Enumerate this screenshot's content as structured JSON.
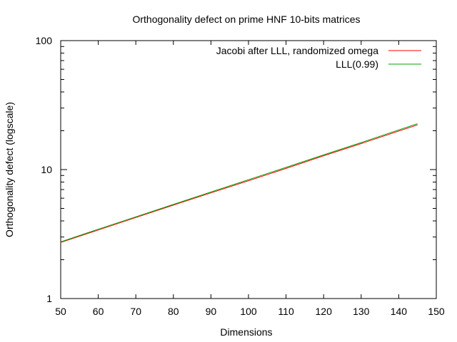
{
  "chart_data": {
    "type": "line",
    "title": "Orthogonality defect on prime HNF 10-bits matrices",
    "xlabel": "Dimensions",
    "ylabel": "Orthogonality defect (logscale)",
    "xlim": [
      50,
      150
    ],
    "ylim": [
      1,
      100
    ],
    "yscale": "log",
    "grid": false,
    "legend_position": "top-right",
    "xticks": [
      50,
      60,
      70,
      80,
      90,
      100,
      110,
      120,
      130,
      140,
      150
    ],
    "xtick_labels": [
      "50",
      "60",
      "70",
      "80",
      "90",
      "100",
      "110",
      "120",
      "130",
      "140",
      "150"
    ],
    "yticks": [
      1,
      10,
      100
    ],
    "ytick_labels": [
      "1",
      "10",
      "100"
    ],
    "y_minor_ticks": [
      2,
      3,
      4,
      5,
      6,
      7,
      8,
      9,
      20,
      30,
      40,
      50,
      60,
      70,
      80,
      90
    ],
    "series": [
      {
        "name": "Jacobi after LLL, randomized omega",
        "color": "#ff0000",
        "x": [
          50,
          60,
          70,
          80,
          90,
          100,
          110,
          120,
          130,
          140,
          145
        ],
        "y": [
          2.72,
          3.4,
          4.25,
          5.3,
          6.6,
          8.2,
          10.2,
          12.8,
          15.9,
          19.9,
          22.2
        ]
      },
      {
        "name": "LLL(0.99)",
        "color": "#00a000",
        "x": [
          50,
          60,
          70,
          80,
          90,
          100,
          110,
          120,
          130,
          140,
          145
        ],
        "y": [
          2.75,
          3.45,
          4.3,
          5.37,
          6.7,
          8.35,
          10.4,
          13.0,
          16.2,
          20.3,
          22.7
        ]
      }
    ]
  }
}
